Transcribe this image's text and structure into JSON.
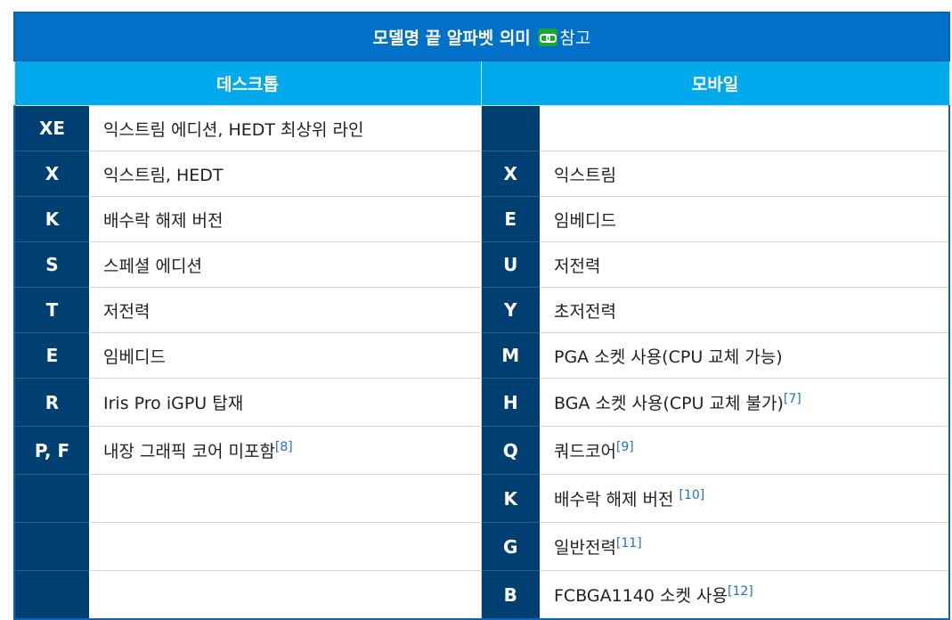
{
  "title": {
    "text": "모델명 끝 알파벳 의미",
    "ref_icon": "link-icon",
    "ref_text": "참고"
  },
  "headers": {
    "desktop": "데스크톱",
    "mobile": "모바일"
  },
  "rows": [
    {
      "d_code": "XE",
      "d_desc": "익스트림 에디션, HEDT 최상위 라인",
      "d_ref": "",
      "m_code": "",
      "m_desc": "",
      "m_ref": ""
    },
    {
      "d_code": "X",
      "d_desc": "익스트림, HEDT",
      "d_ref": "",
      "m_code": "X",
      "m_desc": "익스트림",
      "m_ref": ""
    },
    {
      "d_code": "K",
      "d_desc": "배수락 해제 버전",
      "d_ref": "",
      "m_code": "E",
      "m_desc": "임베디드",
      "m_ref": ""
    },
    {
      "d_code": "S",
      "d_desc": "스페셜 에디션",
      "d_ref": "",
      "m_code": "U",
      "m_desc": "저전력",
      "m_ref": ""
    },
    {
      "d_code": "T",
      "d_desc": "저전력",
      "d_ref": "",
      "m_code": "Y",
      "m_desc": "초저전력",
      "m_ref": ""
    },
    {
      "d_code": "E",
      "d_desc": "임베디드",
      "d_ref": "",
      "m_code": "M",
      "m_desc": "PGA 소켓 사용(CPU 교체 가능)",
      "m_ref": ""
    },
    {
      "d_code": "R",
      "d_desc": "Iris Pro iGPU 탑재",
      "d_ref": "",
      "m_code": "H",
      "m_desc": "BGA 소켓 사용(CPU 교체 불가)",
      "m_ref": "[7]"
    },
    {
      "d_code": "P, F",
      "d_desc": "내장 그래픽 코어 미포함",
      "d_ref": "[8]",
      "m_code": "Q",
      "m_desc": "쿼드코어",
      "m_ref": "[9]"
    },
    {
      "d_code": "",
      "d_desc": "",
      "d_ref": "",
      "m_code": "K",
      "m_desc": "배수락 해제 버전 ",
      "m_ref": "[10]"
    },
    {
      "d_code": "",
      "d_desc": "",
      "d_ref": "",
      "m_code": "G",
      "m_desc": "일반전력",
      "m_ref": "[11]"
    },
    {
      "d_code": "",
      "d_desc": "",
      "d_ref": "",
      "m_code": "B",
      "m_desc": "FCBGA1140 소켓 사용",
      "m_ref": "[12]"
    }
  ]
}
